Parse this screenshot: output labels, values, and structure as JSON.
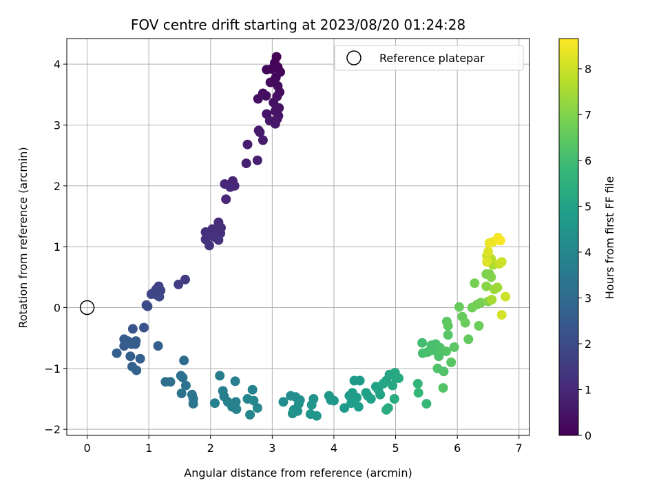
{
  "chart_data": {
    "type": "scatter",
    "title": "FOV centre drift starting at 2023/08/20 01:24:28",
    "xlabel": "Angular distance from reference (arcmin)",
    "ylabel": "Rotation from reference (arcmin)",
    "xlim": [
      -0.33,
      7.17
    ],
    "ylim": [
      -2.1,
      4.42
    ],
    "xticks": [
      0,
      1,
      2,
      3,
      4,
      5,
      6,
      7
    ],
    "xtick_labels": [
      "0",
      "1",
      "2",
      "3",
      "4",
      "5",
      "6",
      "7"
    ],
    "yticks": [
      -2,
      -1,
      0,
      1,
      2,
      3,
      4
    ],
    "ytick_labels": [
      "−2",
      "−1",
      "0",
      "1",
      "2",
      "3",
      "4"
    ],
    "grid": true,
    "legend": {
      "position": "top-right",
      "entries": [
        {
          "label": "Reference platepar",
          "marker": "open-circle"
        }
      ]
    },
    "reference_point": {
      "x": 0,
      "y": 0
    },
    "colorbar": {
      "label": "Hours from first FF file",
      "colormap": "viridis",
      "range": [
        0,
        8.66
      ],
      "ticks": [
        0,
        1,
        2,
        3,
        4,
        5,
        6,
        7,
        8
      ],
      "tick_labels": [
        "0",
        "1",
        "2",
        "3",
        "4",
        "5",
        "6",
        "7",
        "8"
      ]
    },
    "colormap_stops": [
      "#440154",
      "#482878",
      "#3e4989",
      "#31688e",
      "#26828e",
      "#1f9e89",
      "#35b779",
      "#6ece58",
      "#b5de2b",
      "#fde725"
    ],
    "series": [
      {
        "color_by": "hours",
        "points": [
          [
            3.07,
            4.12,
            0.02
          ],
          [
            3.04,
            4.02,
            0.05
          ],
          [
            3.09,
            3.95,
            0.08
          ],
          [
            2.99,
            3.92,
            0.1
          ],
          [
            2.91,
            3.91,
            0.12
          ],
          [
            3.13,
            3.87,
            0.15
          ],
          [
            3.06,
            3.78,
            0.18
          ],
          [
            3.02,
            3.72,
            0.2
          ],
          [
            2.97,
            3.7,
            0.22
          ],
          [
            3.09,
            3.64,
            0.25
          ],
          [
            3.12,
            3.54,
            0.28
          ],
          [
            2.85,
            3.52,
            0.3
          ],
          [
            2.9,
            3.48,
            0.33
          ],
          [
            3.08,
            3.47,
            0.36
          ],
          [
            2.77,
            3.43,
            0.38
          ],
          [
            3.02,
            3.37,
            0.4
          ],
          [
            3.11,
            3.28,
            0.43
          ],
          [
            3.05,
            3.23,
            0.46
          ],
          [
            2.91,
            3.18,
            0.48
          ],
          [
            3.1,
            3.15,
            0.5
          ],
          [
            3.08,
            3.1,
            0.53
          ],
          [
            2.96,
            3.07,
            0.56
          ],
          [
            3.05,
            3.02,
            0.58
          ],
          [
            2.78,
            2.91,
            0.62
          ],
          [
            2.8,
            2.88,
            0.65
          ],
          [
            2.85,
            2.75,
            0.68
          ],
          [
            2.6,
            2.68,
            0.72
          ],
          [
            2.76,
            2.42,
            0.76
          ],
          [
            2.58,
            2.37,
            0.8
          ],
          [
            2.36,
            2.08,
            0.86
          ],
          [
            2.23,
            2.03,
            0.9
          ],
          [
            2.39,
            2.0,
            0.93
          ],
          [
            2.32,
            1.98,
            0.96
          ],
          [
            2.25,
            1.78,
            1.0
          ],
          [
            2.13,
            1.4,
            1.08
          ],
          [
            1.92,
            1.24,
            1.12
          ],
          [
            2.17,
            1.31,
            1.14
          ],
          [
            2.03,
            1.29,
            1.16
          ],
          [
            1.98,
            1.23,
            1.18
          ],
          [
            2.16,
            1.22,
            1.2
          ],
          [
            2.06,
            1.16,
            1.22
          ],
          [
            1.92,
            1.12,
            1.25
          ],
          [
            2.13,
            1.11,
            1.28
          ],
          [
            1.98,
            1.02,
            1.32
          ],
          [
            1.59,
            0.46,
            1.55
          ],
          [
            1.48,
            0.38,
            1.6
          ],
          [
            1.16,
            0.35,
            1.72
          ],
          [
            1.12,
            0.3,
            1.75
          ],
          [
            1.19,
            0.28,
            1.78
          ],
          [
            1.07,
            0.24,
            1.8
          ],
          [
            1.04,
            0.22,
            1.82
          ],
          [
            1.14,
            0.2,
            1.85
          ],
          [
            1.17,
            0.18,
            1.88
          ],
          [
            0.96,
            0.04,
            1.95
          ],
          [
            0.98,
            0.02,
            1.98
          ],
          [
            0.74,
            -0.35,
            2.3
          ],
          [
            0.92,
            -0.33,
            2.25
          ],
          [
            0.6,
            -0.52,
            2.45
          ],
          [
            0.66,
            -0.55,
            2.48
          ],
          [
            0.79,
            -0.55,
            2.5
          ],
          [
            0.72,
            -0.6,
            2.52
          ],
          [
            0.6,
            -0.63,
            2.55
          ],
          [
            0.78,
            -0.6,
            2.56
          ],
          [
            0.48,
            -0.75,
            2.6
          ],
          [
            0.7,
            -0.8,
            2.58
          ],
          [
            0.86,
            -0.84,
            2.62
          ],
          [
            1.15,
            -0.63,
            2.65
          ],
          [
            0.73,
            -0.97,
            2.68
          ],
          [
            0.8,
            -1.03,
            2.72
          ],
          [
            1.57,
            -0.87,
            3.0
          ],
          [
            1.52,
            -1.12,
            3.1
          ],
          [
            1.27,
            -1.22,
            3.15
          ],
          [
            1.35,
            -1.22,
            3.18
          ],
          [
            1.55,
            -1.15,
            3.22
          ],
          [
            1.6,
            -1.28,
            3.25
          ],
          [
            1.53,
            -1.41,
            3.3
          ],
          [
            1.7,
            -1.43,
            3.35
          ],
          [
            1.72,
            -1.5,
            3.38
          ],
          [
            1.72,
            -1.58,
            3.42
          ],
          [
            2.15,
            -1.12,
            3.6
          ],
          [
            2.4,
            -1.21,
            3.65
          ],
          [
            2.2,
            -1.37,
            3.68
          ],
          [
            2.22,
            -1.46,
            3.72
          ],
          [
            2.28,
            -1.55,
            3.75
          ],
          [
            2.07,
            -1.57,
            3.78
          ],
          [
            2.41,
            -1.55,
            3.8
          ],
          [
            2.35,
            -1.63,
            3.82
          ],
          [
            2.42,
            -1.67,
            3.85
          ],
          [
            2.68,
            -1.35,
            3.9
          ],
          [
            2.6,
            -1.5,
            3.95
          ],
          [
            2.7,
            -1.53,
            3.98
          ],
          [
            2.76,
            -1.65,
            4.0
          ],
          [
            2.64,
            -1.76,
            4.03
          ],
          [
            3.18,
            -1.55,
            4.2
          ],
          [
            3.3,
            -1.45,
            4.25
          ],
          [
            3.38,
            -1.47,
            4.28
          ],
          [
            3.45,
            -1.52,
            4.3
          ],
          [
            3.43,
            -1.58,
            4.32
          ],
          [
            3.35,
            -1.68,
            4.35
          ],
          [
            3.41,
            -1.7,
            4.38
          ],
          [
            3.33,
            -1.74,
            4.4
          ],
          [
            3.67,
            -1.5,
            4.45
          ],
          [
            3.64,
            -1.6,
            4.48
          ],
          [
            3.62,
            -1.75,
            4.5
          ],
          [
            3.72,
            -1.78,
            4.52
          ],
          [
            3.92,
            -1.45,
            4.55
          ],
          [
            3.95,
            -1.52,
            4.58
          ],
          [
            4.0,
            -1.53,
            4.6
          ],
          [
            4.17,
            -1.65,
            4.65
          ],
          [
            4.25,
            -1.45,
            4.7
          ],
          [
            4.33,
            -1.2,
            4.72
          ],
          [
            4.42,
            -1.2,
            4.75
          ],
          [
            4.3,
            -1.4,
            4.78
          ],
          [
            4.37,
            -1.48,
            4.8
          ],
          [
            4.28,
            -1.57,
            4.82
          ],
          [
            4.4,
            -1.63,
            4.85
          ],
          [
            4.52,
            -1.4,
            4.88
          ],
          [
            4.55,
            -1.45,
            4.9
          ],
          [
            4.6,
            -1.5,
            4.92
          ],
          [
            4.68,
            -1.3,
            4.95
          ],
          [
            4.72,
            -1.35,
            4.98
          ],
          [
            4.75,
            -1.43,
            5.0
          ],
          [
            4.85,
            -1.2,
            5.05
          ],
          [
            4.8,
            -1.25,
            5.08
          ],
          [
            4.9,
            -1.1,
            5.12
          ],
          [
            4.95,
            -1.28,
            5.15
          ],
          [
            5.0,
            -1.15,
            5.2
          ],
          [
            4.99,
            -1.07,
            5.22
          ],
          [
            5.05,
            -1.16,
            5.25
          ],
          [
            4.88,
            -1.65,
            5.28
          ],
          [
            4.98,
            -1.5,
            5.3
          ],
          [
            4.85,
            -1.68,
            5.32
          ],
          [
            5.36,
            -1.25,
            5.7
          ],
          [
            5.37,
            -1.4,
            5.75
          ],
          [
            5.5,
            -1.58,
            5.8
          ],
          [
            5.43,
            -0.58,
            6.0
          ],
          [
            5.44,
            -0.75,
            6.05
          ],
          [
            5.52,
            -0.73,
            6.08
          ],
          [
            5.58,
            -0.62,
            6.1
          ],
          [
            5.6,
            -0.7,
            6.12
          ],
          [
            5.65,
            -0.6,
            6.15
          ],
          [
            5.7,
            -0.8,
            6.18
          ],
          [
            5.72,
            -0.66,
            6.2
          ],
          [
            5.68,
            -1.0,
            6.22
          ],
          [
            5.78,
            -1.05,
            6.25
          ],
          [
            5.77,
            -1.32,
            6.28
          ],
          [
            5.82,
            -0.72,
            6.3
          ],
          [
            5.85,
            -0.45,
            6.35
          ],
          [
            5.83,
            -0.23,
            6.45
          ],
          [
            5.85,
            -0.3,
            6.5
          ],
          [
            5.95,
            -0.65,
            6.4
          ],
          [
            5.9,
            -0.9,
            6.38
          ],
          [
            6.03,
            0.01,
            6.6
          ],
          [
            6.08,
            -0.15,
            6.62
          ],
          [
            6.13,
            -0.25,
            6.65
          ],
          [
            6.18,
            -0.52,
            6.55
          ],
          [
            6.24,
            0.0,
            6.75
          ],
          [
            6.32,
            0.05,
            6.8
          ],
          [
            6.38,
            0.08,
            6.82
          ],
          [
            6.35,
            -0.3,
            6.7
          ],
          [
            6.28,
            0.4,
            6.85
          ],
          [
            6.47,
            0.55,
            6.9
          ],
          [
            6.52,
            0.55,
            6.95
          ],
          [
            6.55,
            0.5,
            7.0
          ],
          [
            6.5,
            0.1,
            7.05
          ],
          [
            6.47,
            0.35,
            7.1
          ],
          [
            6.6,
            0.3,
            7.3
          ],
          [
            6.65,
            0.33,
            7.4
          ],
          [
            6.56,
            0.13,
            7.5
          ],
          [
            6.58,
            0.7,
            7.55
          ],
          [
            6.55,
            0.8,
            7.7
          ],
          [
            6.48,
            0.85,
            7.9
          ],
          [
            6.68,
            0.72,
            7.95
          ],
          [
            6.72,
            0.75,
            8.0
          ],
          [
            6.78,
            0.18,
            8.0
          ],
          [
            6.72,
            -0.12,
            8.1
          ],
          [
            6.5,
            0.92,
            8.2
          ],
          [
            6.48,
            0.75,
            8.25
          ],
          [
            6.52,
            1.06,
            8.4
          ],
          [
            6.58,
            1.08,
            8.45
          ],
          [
            6.66,
            1.15,
            8.55
          ],
          [
            6.7,
            1.1,
            8.6
          ]
        ]
      }
    ]
  }
}
